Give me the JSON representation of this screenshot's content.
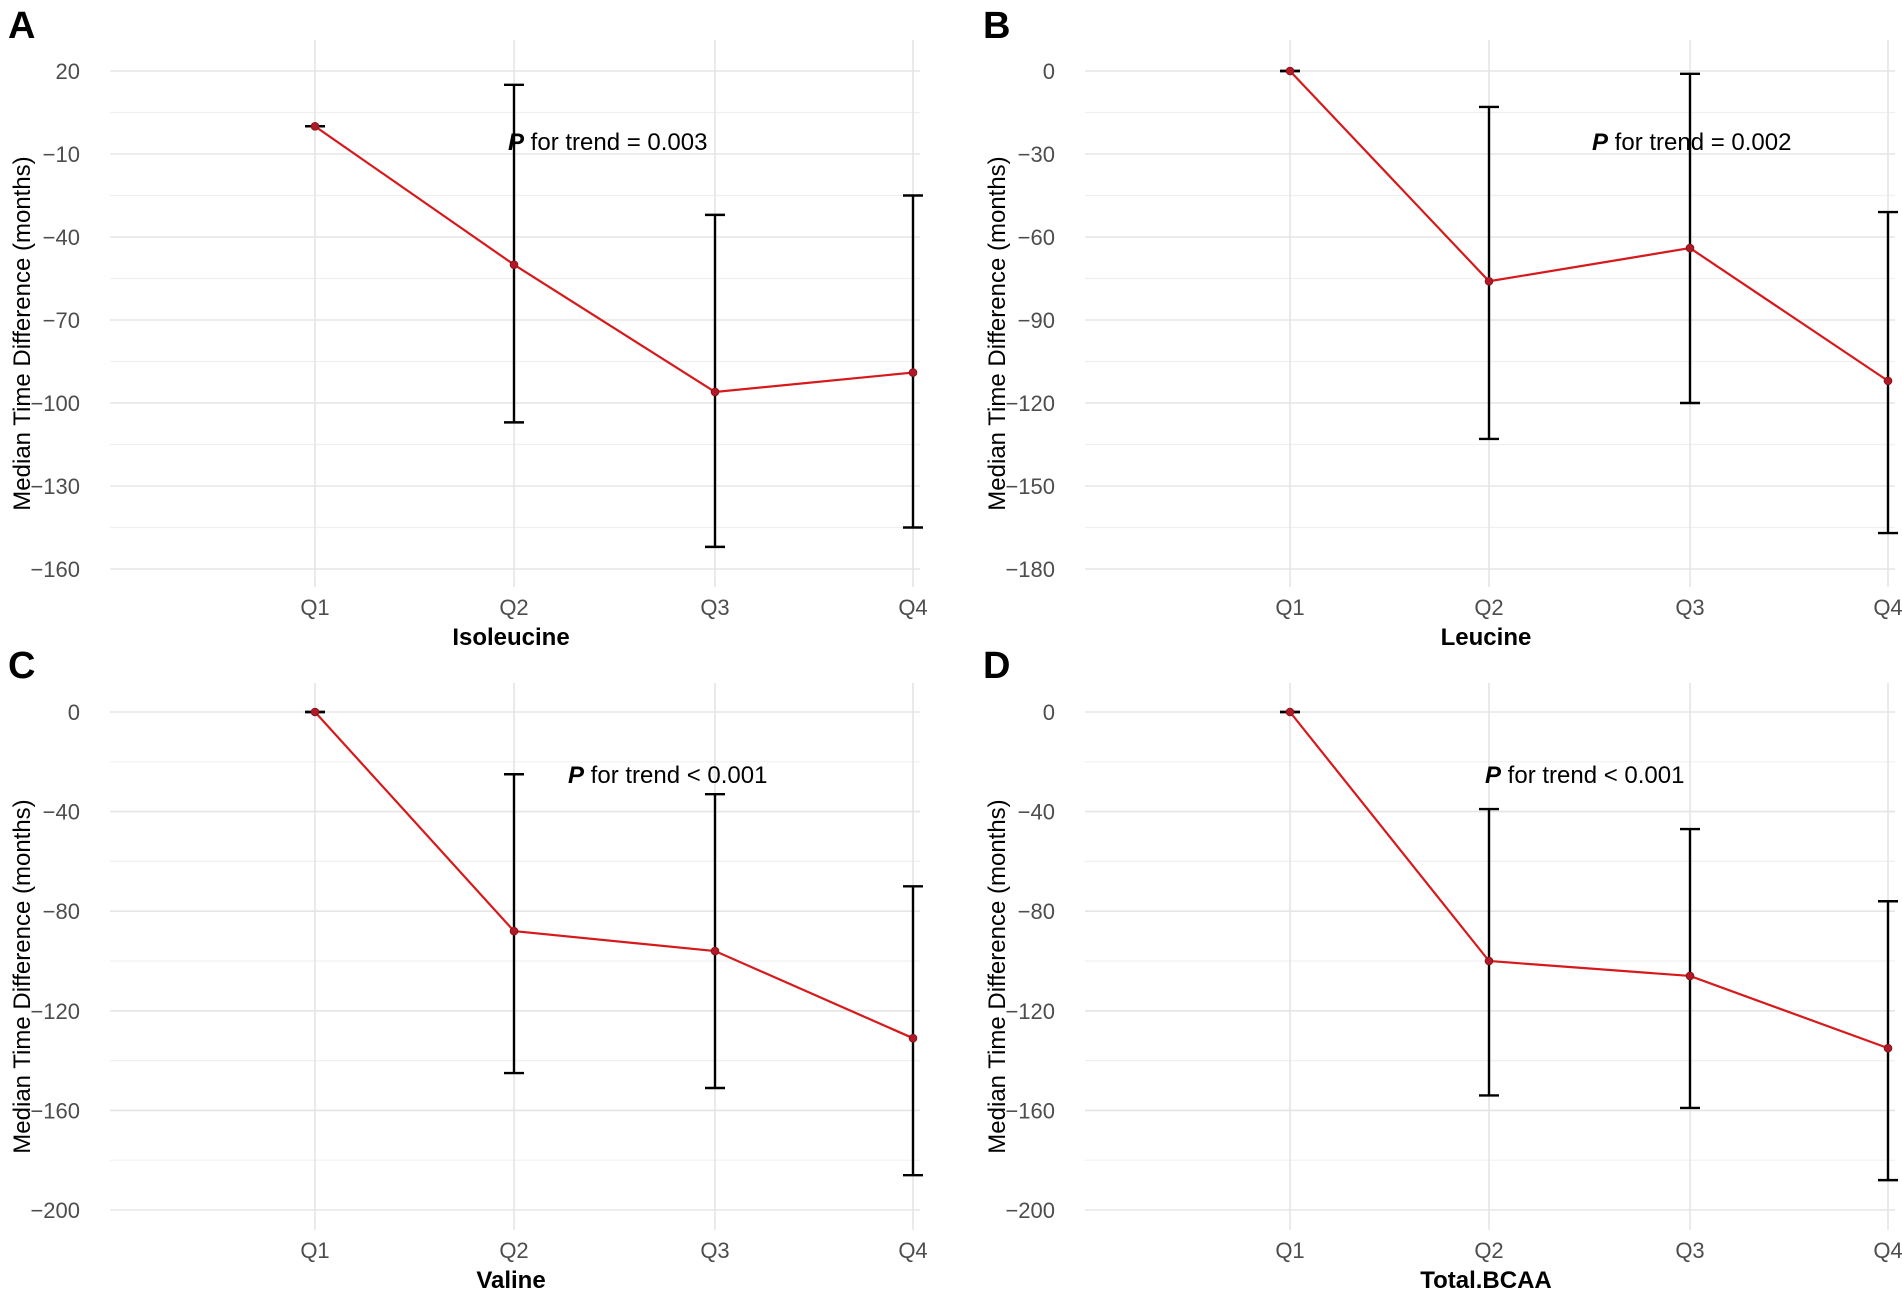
{
  "chart_data": [
    {
      "panel": "A",
      "type": "line",
      "xlabel": "Isoleucine",
      "ylabel": "Median Time Difference (months)",
      "categories": [
        "Q1",
        "Q2",
        "Q3",
        "Q4"
      ],
      "values": [
        0,
        -50,
        -96,
        -89
      ],
      "lower": [
        0,
        -107,
        -152,
        -145
      ],
      "upper": [
        0,
        15,
        -32,
        -25
      ],
      "ylim": [
        -160,
        20
      ],
      "yticks": [
        20,
        -10,
        -40,
        -70,
        -100,
        -130,
        -160
      ],
      "yticks_text": [
        "20",
        "−10",
        "−40",
        "−70",
        "−100",
        "−130",
        "−160"
      ],
      "annotation": {
        "p": "P",
        "text": " for trend = 0.003"
      },
      "series_color": "#d7191c"
    },
    {
      "panel": "B",
      "type": "line",
      "xlabel": "Leucine",
      "ylabel": "Median Time Difference (months)",
      "categories": [
        "Q1",
        "Q2",
        "Q3",
        "Q4"
      ],
      "values": [
        0,
        -76,
        -64,
        -112
      ],
      "lower": [
        0,
        -133,
        -120,
        -167
      ],
      "upper": [
        0,
        -13,
        -1,
        -51
      ],
      "ylim": [
        -180,
        0
      ],
      "yticks": [
        0,
        -30,
        -60,
        -90,
        -120,
        -150,
        -180
      ],
      "yticks_text": [
        "0",
        "−30",
        "−60",
        "−90",
        "−120",
        "−150",
        "−180"
      ],
      "annotation": {
        "p": "P",
        "text": " for trend = 0.002"
      },
      "series_color": "#d7191c"
    },
    {
      "panel": "C",
      "type": "line",
      "xlabel": "Valine",
      "ylabel": "Median Time Difference (months)",
      "categories": [
        "Q1",
        "Q2",
        "Q3",
        "Q4"
      ],
      "values": [
        0,
        -88,
        -96,
        -131
      ],
      "lower": [
        0,
        -145,
        -151,
        -186
      ],
      "upper": [
        0,
        -25,
        -33,
        -70
      ],
      "ylim": [
        -200,
        0
      ],
      "yticks": [
        0,
        -40,
        -80,
        -120,
        -160,
        -200
      ],
      "yticks_text": [
        "0",
        "−40",
        "−80",
        "−120",
        "−160",
        "−200"
      ],
      "annotation": {
        "p": "P",
        "text": " for trend < 0.001"
      },
      "series_color": "#d7191c"
    },
    {
      "panel": "D",
      "type": "line",
      "xlabel": "Total.BCAA",
      "ylabel": "Median Time Difference (months)",
      "categories": [
        "Q1",
        "Q2",
        "Q3",
        "Q4"
      ],
      "values": [
        0,
        -100,
        -106,
        -135
      ],
      "lower": [
        0,
        -154,
        -159,
        -188
      ],
      "upper": [
        0,
        -39,
        -47,
        -76
      ],
      "ylim": [
        -200,
        0
      ],
      "yticks": [
        0,
        -40,
        -80,
        -120,
        -160,
        -200
      ],
      "yticks_text": [
        "0",
        "−40",
        "−80",
        "−120",
        "−160",
        "−200"
      ],
      "annotation": {
        "p": "P",
        "text": " for trend < 0.001"
      },
      "series_color": "#d7191c"
    }
  ]
}
